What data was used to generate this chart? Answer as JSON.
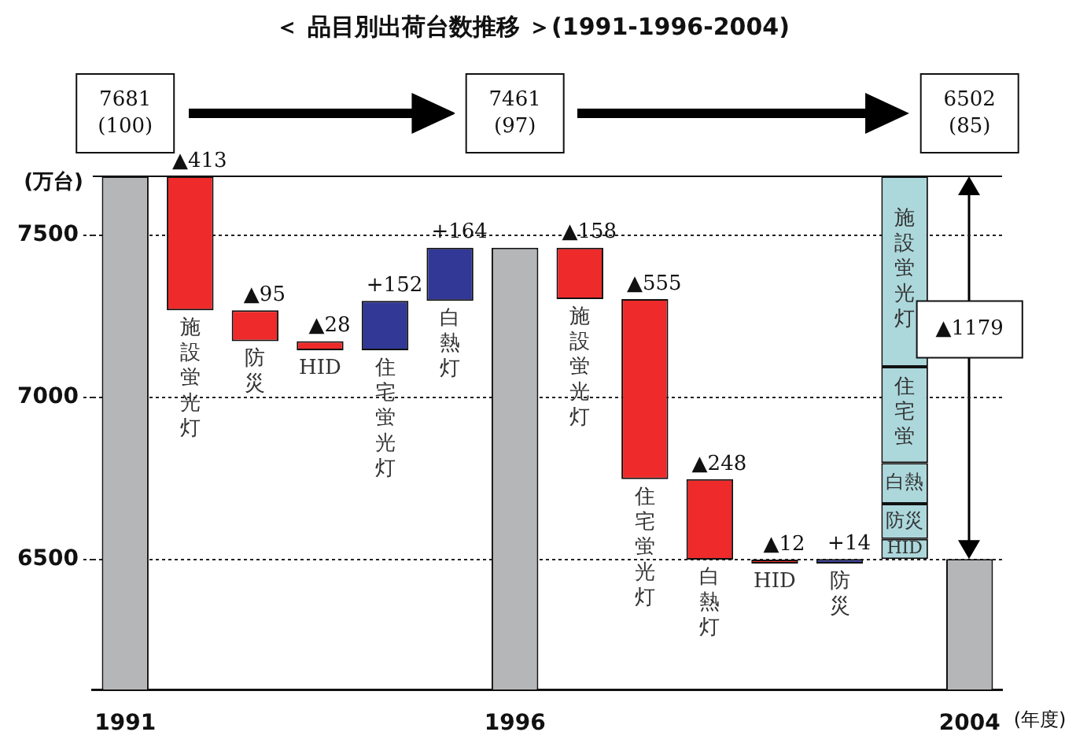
{
  "chart_data": {
    "type": "bar",
    "title": "＜ 品目別出荷台数推移 ＞(1991-1996-2004)",
    "xlabel": "(年度)",
    "ylabel": "(万台)",
    "categories": [
      "1991",
      "施設蛍光灯",
      "防災",
      "HID",
      "住宅蛍光灯",
      "白熱灯",
      "1996",
      "施設蛍光灯",
      "住宅蛍光灯",
      "白熱灯",
      "HID",
      "防災",
      null,
      "2004"
    ],
    "ylim": [
      6100,
      7681
    ],
    "yticks": [
      6500,
      7000,
      7500
    ],
    "grid": "y",
    "legend": false,
    "annotations": [
      "▲1179"
    ],
    "series": [
      {
        "color": "#b5b6b8",
        "values": [
          7681,
          null,
          null,
          null,
          null,
          null,
          7461,
          null,
          null,
          null,
          null,
          null,
          null,
          6502
        ],
        "value_labels": [
          "7681\n(100)",
          null,
          null,
          null,
          null,
          null,
          "7461\n(97)",
          null,
          null,
          null,
          null,
          null,
          null,
          "6502\n(85)"
        ]
      },
      {
        "colors": [
          "#ee2a2a",
          "#ee2a2a",
          "#ee2a2a",
          "#ee2a2a",
          "#313896",
          "#313896",
          "#ee2a2a",
          "#ee2a2a",
          "#ee2a2a",
          "#ee2a2a",
          "#ee2a2a",
          "#313896",
          "#ee2a2a",
          "#ee2a2a"
        ],
        "values": [
          null,
          -413,
          -95,
          -28,
          152,
          164,
          null,
          -158,
          -555,
          -248,
          -12,
          14,
          null,
          null
        ],
        "base": [
          null,
          7681,
          7268,
          7173,
          7145,
          7297,
          null,
          7461,
          7303,
          6748,
          6500,
          6488,
          null,
          null
        ],
        "value_labels": [
          null,
          "▲413",
          "▲95",
          "▲28",
          "+152",
          "+164",
          null,
          "▲158",
          "▲555",
          "▲248",
          "▲12",
          "+14",
          null,
          null
        ]
      },
      {
        "name": "HID",
        "color": "#acd8dc",
        "values": [
          null,
          null,
          null,
          null,
          null,
          null,
          null,
          null,
          null,
          null,
          null,
          null,
          62,
          null
        ],
        "base": [
          null,
          null,
          null,
          null,
          null,
          null,
          null,
          null,
          null,
          null,
          null,
          null,
          6502,
          null
        ]
      },
      {
        "name": "防災",
        "color": "#acd8dc",
        "values": [
          null,
          null,
          null,
          null,
          null,
          null,
          null,
          null,
          null,
          null,
          null,
          null,
          108,
          null
        ],
        "base": [
          null,
          null,
          null,
          null,
          null,
          null,
          null,
          null,
          null,
          null,
          null,
          null,
          6564,
          null
        ]
      },
      {
        "name": "白熱",
        "color": "#acd8dc",
        "values": [
          null,
          null,
          null,
          null,
          null,
          null,
          null,
          null,
          null,
          null,
          null,
          null,
          126,
          null
        ],
        "base": [
          null,
          null,
          null,
          null,
          null,
          null,
          null,
          null,
          null,
          null,
          null,
          null,
          6672,
          null
        ]
      },
      {
        "name": "住宅蛍",
        "color": "#acd8dc",
        "values": [
          null,
          null,
          null,
          null,
          null,
          null,
          null,
          null,
          null,
          null,
          null,
          null,
          296,
          null
        ],
        "base": [
          null,
          null,
          null,
          null,
          null,
          null,
          null,
          null,
          null,
          null,
          null,
          null,
          6798,
          null
        ]
      },
      {
        "name": "施設蛍光灯",
        "color": "#acd8dc",
        "values": [
          null,
          null,
          null,
          null,
          null,
          null,
          null,
          null,
          null,
          null,
          null,
          null,
          587,
          null
        ],
        "base": [
          null,
          null,
          null,
          null,
          null,
          null,
          null,
          null,
          null,
          null,
          null,
          null,
          7094,
          null
        ]
      }
    ]
  }
}
